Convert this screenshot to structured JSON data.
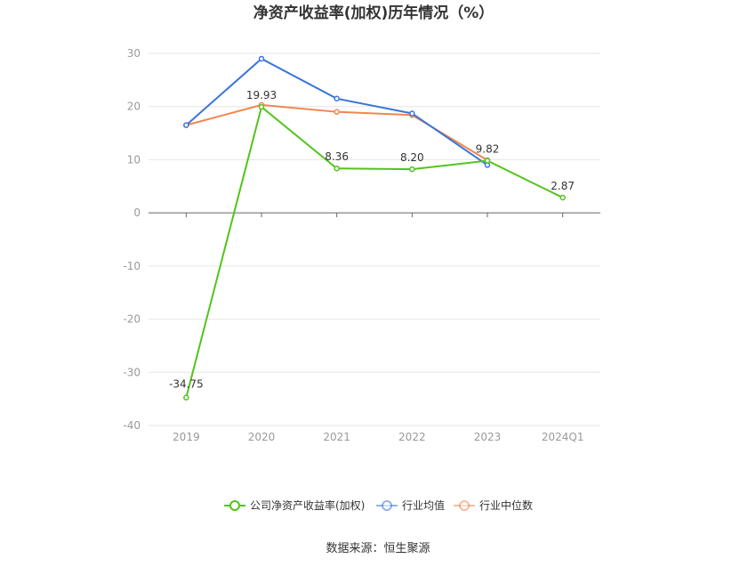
{
  "chart_data": {
    "type": "line",
    "title": "净资产收益率(加权)历年情况（%）",
    "categories": [
      "2019",
      "2020",
      "2021",
      "2022",
      "2023",
      "2024Q1"
    ],
    "ylim": [
      -40,
      30
    ],
    "yticks": [
      30,
      20,
      10,
      0,
      -10,
      -20,
      -30,
      -40
    ],
    "grid": true,
    "legend_position": "bottom",
    "series": [
      {
        "name": "公司净资产收益率(加权)",
        "color": "#52c41a",
        "values": [
          -34.75,
          19.93,
          8.36,
          8.2,
          9.82,
          2.87
        ],
        "labels": [
          "-34.75",
          "19.93",
          "8.36",
          "8.20",
          "9.82",
          "2.87"
        ]
      },
      {
        "name": "行业均值",
        "color": "#3a75d8",
        "values": [
          16.5,
          29.0,
          21.5,
          18.7,
          9.0,
          null
        ]
      },
      {
        "name": "行业中位数",
        "color": "#f08650",
        "values": [
          16.5,
          20.3,
          19.0,
          18.4,
          9.9,
          null
        ]
      }
    ],
    "source": "数据来源：恒生聚源"
  }
}
